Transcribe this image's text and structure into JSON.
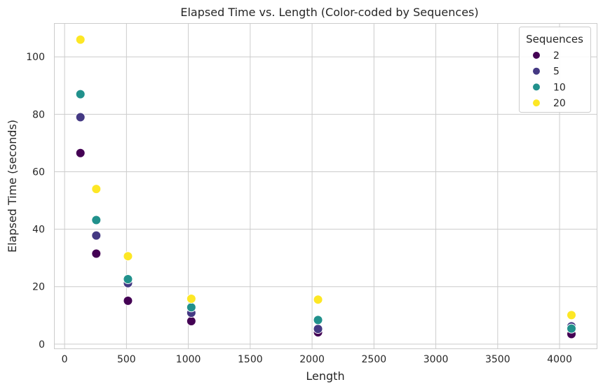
{
  "chart_data": {
    "type": "scatter",
    "title": "Elapsed Time vs. Length (Color-coded by Sequences)",
    "xlabel": "Length",
    "ylabel": "Elapsed Time (seconds)",
    "xlim": [
      -80,
      4300
    ],
    "ylim": [
      -1.5,
      111.5
    ],
    "xticks": [
      0,
      500,
      1000,
      1500,
      2000,
      2500,
      3000,
      3500,
      4000
    ],
    "yticks": [
      0,
      20,
      40,
      60,
      80,
      100
    ],
    "grid": true,
    "legend": {
      "title": "Sequences",
      "placement": "top-right"
    },
    "series": [
      {
        "name": "2",
        "color": "#440154",
        "points": [
          [
            128,
            66.5
          ],
          [
            256,
            31.5
          ],
          [
            512,
            15.1
          ],
          [
            1024,
            8.0
          ],
          [
            2048,
            4.1
          ],
          [
            4096,
            3.5
          ]
        ]
      },
      {
        "name": "5",
        "color": "#443983",
        "points": [
          [
            128,
            79.0
          ],
          [
            256,
            37.8
          ],
          [
            512,
            21.2
          ],
          [
            1024,
            10.9
          ],
          [
            2048,
            5.3
          ],
          [
            4096,
            6.2
          ]
        ]
      },
      {
        "name": "10",
        "color": "#21918c",
        "points": [
          [
            128,
            87.0
          ],
          [
            256,
            43.2
          ],
          [
            512,
            22.6
          ],
          [
            1024,
            12.8
          ],
          [
            2048,
            8.4
          ],
          [
            4096,
            5.4
          ]
        ]
      },
      {
        "name": "20",
        "color": "#fde725",
        "points": [
          [
            128,
            106.0
          ],
          [
            256,
            54.0
          ],
          [
            512,
            30.6
          ],
          [
            1024,
            15.8
          ],
          [
            2048,
            15.5
          ],
          [
            4096,
            10.1
          ]
        ]
      }
    ]
  }
}
